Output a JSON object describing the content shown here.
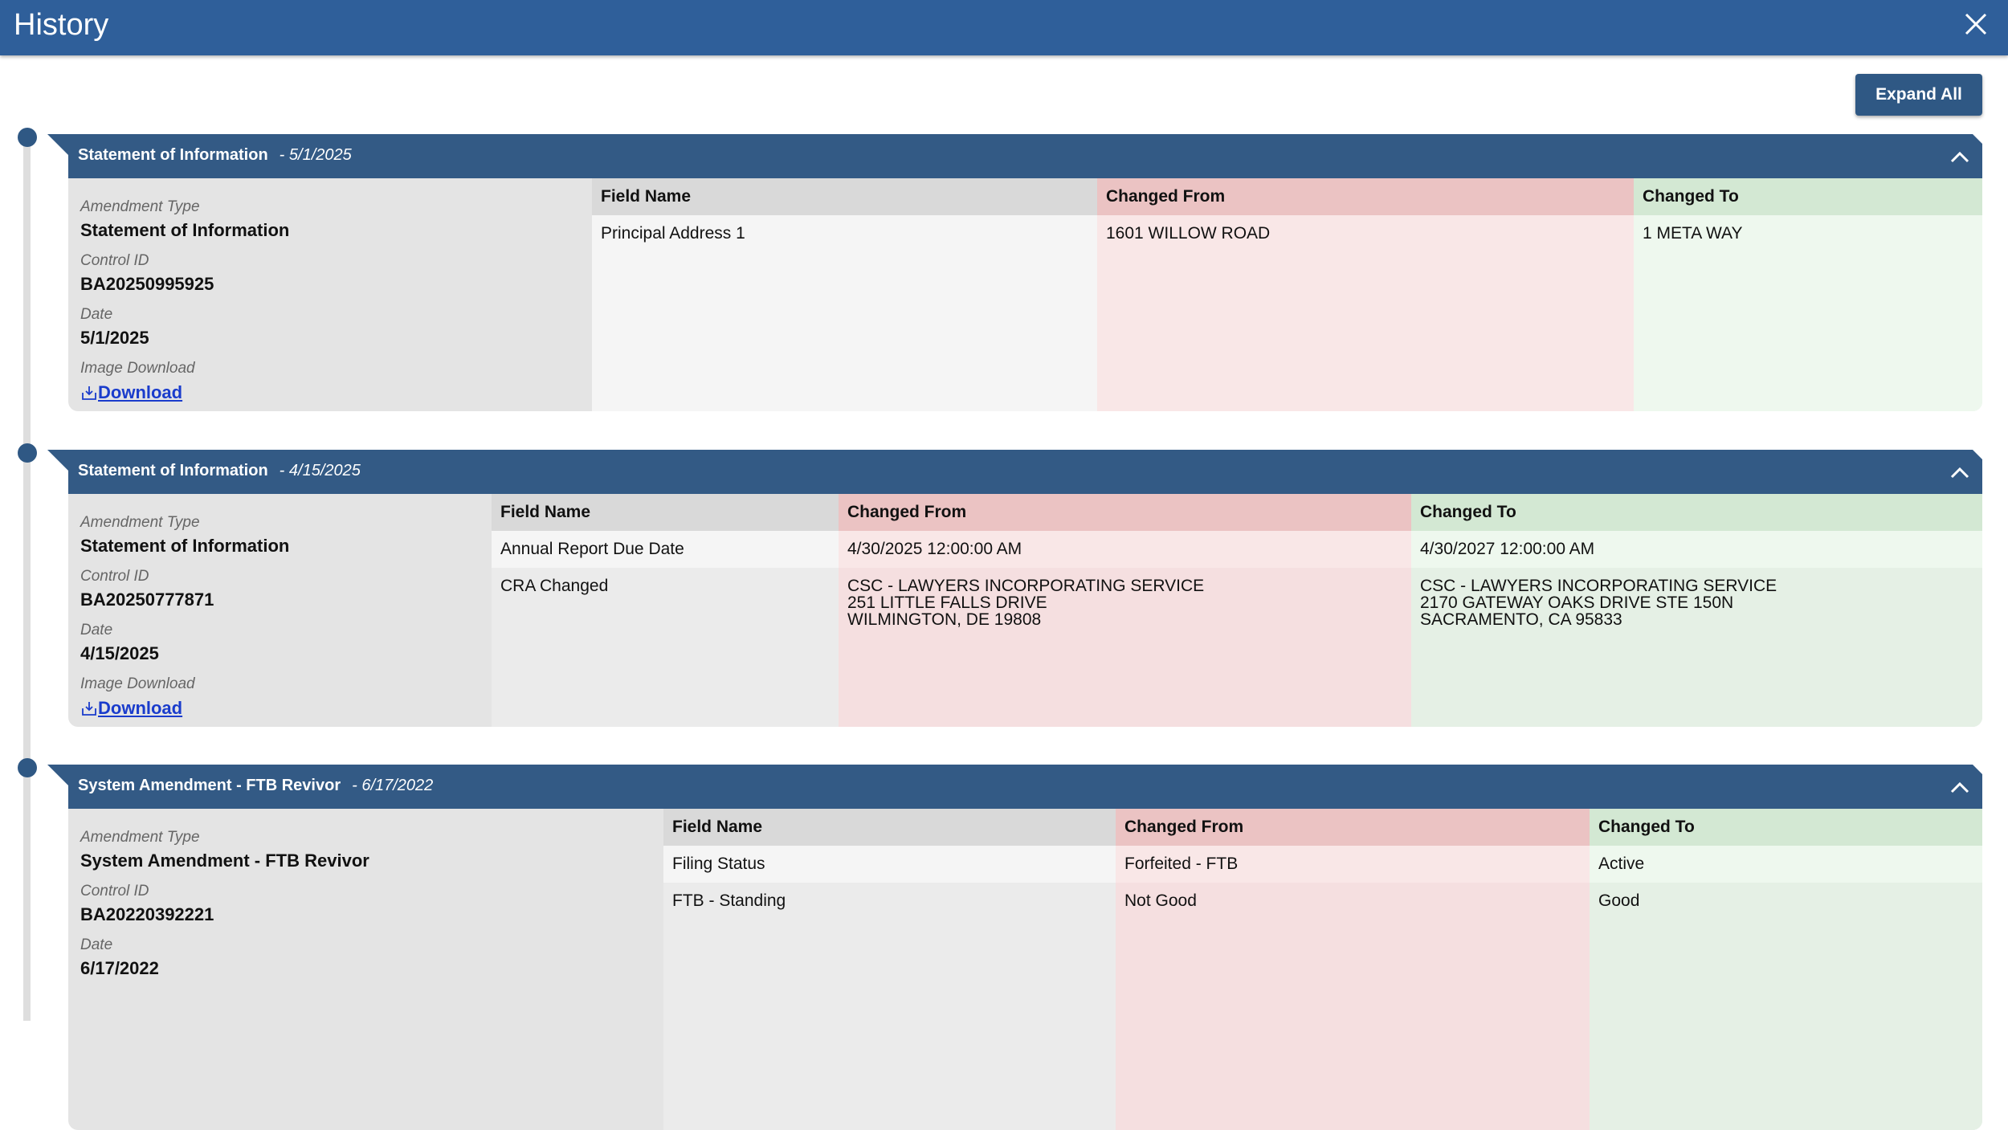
{
  "header": {
    "title": "History"
  },
  "toolbar": {
    "expand_all": "Expand All"
  },
  "panels": [
    {
      "title": "Statement of Information",
      "date": "- 5/1/2025",
      "info": {
        "amendment_type_label": "Amendment Type",
        "amendment_type": "Statement of Information",
        "control_id_label": "Control ID",
        "control_id": "BA20250995925",
        "date_label": "Date",
        "date": "5/1/2025",
        "image_download_label": "Image Download",
        "download": "Download"
      },
      "columns": [
        "Field Name",
        "Changed From",
        "Changed To"
      ],
      "rows": [
        [
          [
            "Principal Address 1"
          ],
          [
            "1601 WILLOW ROAD"
          ],
          [
            "1 META WAY"
          ]
        ]
      ]
    },
    {
      "title": "Statement of Information",
      "date": "- 4/15/2025",
      "info": {
        "amendment_type_label": "Amendment Type",
        "amendment_type": "Statement of Information",
        "control_id_label": "Control ID",
        "control_id": "BA20250777871",
        "date_label": "Date",
        "date": "4/15/2025",
        "image_download_label": "Image Download",
        "download": "Download"
      },
      "columns": [
        "Field Name",
        "Changed From",
        "Changed To"
      ],
      "rows": [
        [
          [
            "Annual Report Due Date"
          ],
          [
            "4/30/2025 12:00:00 AM"
          ],
          [
            "4/30/2027 12:00:00 AM"
          ]
        ],
        [
          [
            "CRA Changed"
          ],
          [
            "CSC - LAWYERS INCORPORATING SERVICE",
            "251 LITTLE FALLS DRIVE",
            "WILMINGTON, DE 19808"
          ],
          [
            "CSC - LAWYERS INCORPORATING SERVICE",
            "2170 GATEWAY OAKS DRIVE STE 150N",
            "SACRAMENTO, CA 95833"
          ]
        ]
      ]
    },
    {
      "title": "System Amendment - FTB Revivor",
      "date": "- 6/17/2022",
      "info": {
        "amendment_type_label": "Amendment Type",
        "amendment_type": "System Amendment - FTB Revivor",
        "control_id_label": "Control ID",
        "control_id": "BA20220392221",
        "date_label": "Date",
        "date": "6/17/2022"
      },
      "columns": [
        "Field Name",
        "Changed From",
        "Changed To"
      ],
      "rows": [
        [
          [
            "Filing Status"
          ],
          [
            "Forfeited - FTB"
          ],
          [
            "Active"
          ]
        ],
        [
          [
            "FTB - Standing"
          ],
          [
            "Not Good"
          ],
          [
            "Good"
          ]
        ]
      ]
    }
  ]
}
